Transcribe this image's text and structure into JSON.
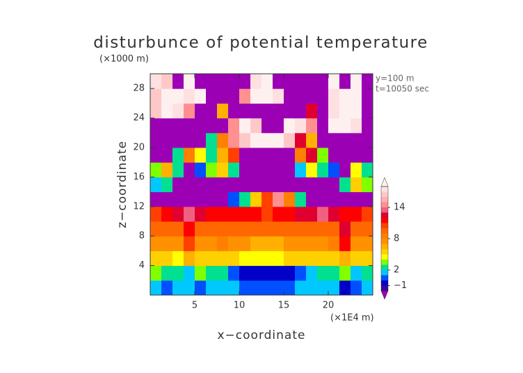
{
  "chart_data": {
    "type": "heatmap",
    "title": "disturbunce of potential temperature",
    "y_unit": "(×1000 m)",
    "x_unit": "(×1E4 m)",
    "annotations": [
      "y=100 m",
      "t=10050 sec"
    ],
    "xlabel": "x−coordinate",
    "ylabel": "z−coordinate",
    "xlim": [
      0,
      25
    ],
    "ylim": [
      0,
      30
    ],
    "xticks": [
      5,
      10,
      15,
      20
    ],
    "yticks": [
      4,
      8,
      12,
      16,
      20,
      24,
      28
    ],
    "x": [
      0.625,
      1.875,
      3.125,
      4.375,
      5.625,
      6.875,
      8.125,
      9.375,
      10.625,
      11.875,
      13.125,
      14.375,
      15.625,
      16.875,
      18.125,
      19.375,
      20.625,
      21.875,
      23.125,
      24.375
    ],
    "y": [
      1,
      3,
      5,
      7,
      9,
      11,
      13,
      15,
      17,
      19,
      21,
      23,
      25,
      27,
      29
    ],
    "values": [
      [
        1,
        0,
        1,
        1,
        0,
        1,
        1,
        1,
        0,
        0,
        0,
        0,
        0,
        1,
        1,
        1,
        1,
        -1,
        0,
        1
      ],
      [
        3,
        2,
        2,
        1,
        3,
        2,
        2,
        0,
        -1,
        -1,
        -1,
        -1,
        -1,
        0,
        1,
        2,
        2,
        3,
        1,
        2
      ],
      [
        5,
        5,
        4,
        6,
        5,
        5,
        5,
        5,
        4,
        4,
        4,
        4,
        5,
        5,
        5,
        5,
        5,
        6,
        5,
        5
      ],
      [
        7,
        7,
        7,
        10,
        7,
        7,
        8,
        7,
        7,
        6,
        6,
        6,
        7,
        7,
        7,
        7,
        8,
        11,
        7,
        7
      ],
      [
        9,
        9,
        9,
        11,
        9,
        9,
        9,
        9,
        9,
        9,
        9,
        9,
        9,
        9,
        9,
        9,
        9,
        12,
        9,
        9
      ],
      [
        10,
        11,
        12,
        13,
        12,
        11,
        11,
        11,
        11,
        11,
        10,
        11,
        11,
        12,
        12,
        13,
        12,
        11,
        11,
        10
      ],
      [
        -3,
        -3,
        -3,
        -3,
        -3,
        -3,
        -3,
        0,
        2,
        5,
        10,
        14,
        8,
        2,
        -3,
        -3,
        -3,
        -3,
        -3,
        -3
      ],
      [
        1,
        2,
        -3,
        -3,
        -3,
        -3,
        -3,
        -3,
        -3,
        -3,
        -3,
        -3,
        -3,
        -3,
        -3,
        -3,
        -3,
        2,
        5,
        3
      ],
      [
        3,
        6,
        2,
        -3,
        0,
        3,
        5,
        2,
        -3,
        -3,
        -3,
        -3,
        -3,
        1,
        4,
        2,
        0,
        -3,
        4,
        2
      ],
      [
        -3,
        -3,
        2,
        8,
        4,
        2,
        6,
        10,
        -3,
        -3,
        -3,
        -3,
        -3,
        8,
        12,
        3,
        -3,
        -3,
        -3,
        -3
      ],
      [
        -3,
        -3,
        -3,
        -3,
        -3,
        2,
        8,
        14,
        16,
        18,
        18,
        18,
        16,
        12,
        6,
        -3,
        -3,
        -3,
        -3,
        -3
      ],
      [
        -3,
        -3,
        -3,
        -3,
        -3,
        -3,
        -3,
        14,
        18,
        16,
        -3,
        -3,
        18,
        17,
        14,
        -3,
        18,
        18,
        17,
        -3
      ],
      [
        16,
        18,
        17,
        14,
        -3,
        -3,
        6,
        -3,
        -3,
        -3,
        -3,
        -3,
        -3,
        -3,
        12,
        -3,
        17,
        18,
        18,
        -3
      ],
      [
        16,
        18,
        18,
        17,
        18,
        -3,
        -3,
        -3,
        14,
        18,
        18,
        17,
        -3,
        -3,
        -3,
        -3,
        17,
        18,
        18,
        -3
      ],
      [
        17,
        16,
        -3,
        18,
        -3,
        -3,
        -3,
        -3,
        -3,
        17,
        18,
        -3,
        -3,
        -3,
        -3,
        -3,
        18,
        -3,
        18,
        -3
      ]
    ],
    "colorbar": {
      "levels": [
        -2,
        -1,
        0,
        1,
        2,
        3,
        4,
        5,
        6,
        7,
        8,
        9,
        10,
        11,
        12,
        13,
        14,
        15,
        16,
        17,
        18
      ],
      "colors": [
        "#9c00b4",
        "#3c00a0",
        "#0000c8",
        "#0050ff",
        "#00c8ff",
        "#00e090",
        "#80ff00",
        "#ffff00",
        "#ffd000",
        "#ffb000",
        "#ff9000",
        "#ff8000",
        "#ff6800",
        "#ff4000",
        "#ff0000",
        "#e00030",
        "#f06080",
        "#ff9090",
        "#ffb0b0",
        "#ffc8c8",
        "#ffe0e0",
        "#fff0f0"
      ],
      "ticks": [
        {
          "value": -1,
          "label": "−1"
        },
        2,
        8,
        14
      ]
    }
  }
}
